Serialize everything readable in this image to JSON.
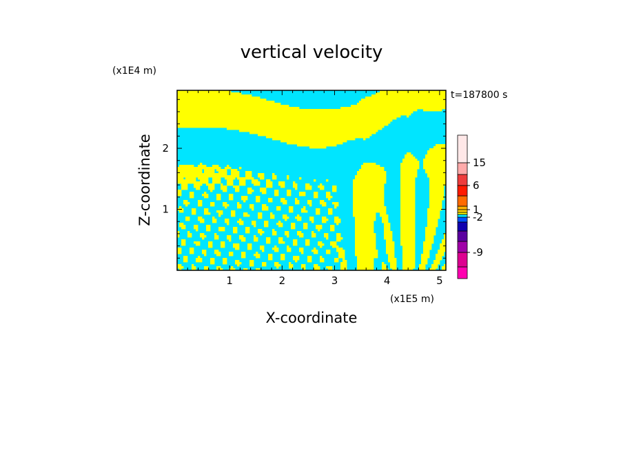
{
  "chart_data": {
    "type": "heatmap",
    "title": "vertical velocity",
    "xlabel": "X-coordinate",
    "ylabel": "Z-coordinate",
    "x_unit": "(x1E5 m)",
    "y_unit": "(x1E4 m)",
    "time_label": "t=187800 s",
    "xlim": [
      0,
      5.12
    ],
    "ylim": [
      0,
      2.95
    ],
    "x_ticks": [
      "1",
      "2",
      "3",
      "4",
      "5"
    ],
    "x_tick_values": [
      1,
      2,
      3,
      4,
      5
    ],
    "y_ticks": [
      "1",
      "2"
    ],
    "y_tick_values": [
      1,
      2
    ],
    "field_colors": {
      "positive": "#ffff00",
      "negative": "#00e5ff"
    },
    "colorbar": {
      "labels": [
        "15",
        "6",
        "1",
        "-2",
        "-9"
      ],
      "levels": [
        {
          "color": "#ff00b0"
        },
        {
          "color": "#dd0090"
        },
        {
          "color": "#a000a8"
        },
        {
          "color": "#5b00a0"
        },
        {
          "color": "#1000b0"
        },
        {
          "color": "#0050ff"
        },
        {
          "color": "#00e5ff"
        },
        {
          "color": "#ffff00"
        },
        {
          "color": "#ffd000"
        },
        {
          "color": "#ffb000"
        },
        {
          "color": "#ff6a00"
        },
        {
          "color": "#ff1a00"
        },
        {
          "color": "#ee3c3c"
        },
        {
          "color": "#ffaaaa"
        },
        {
          "color": "#ffe8e8"
        }
      ]
    }
  }
}
